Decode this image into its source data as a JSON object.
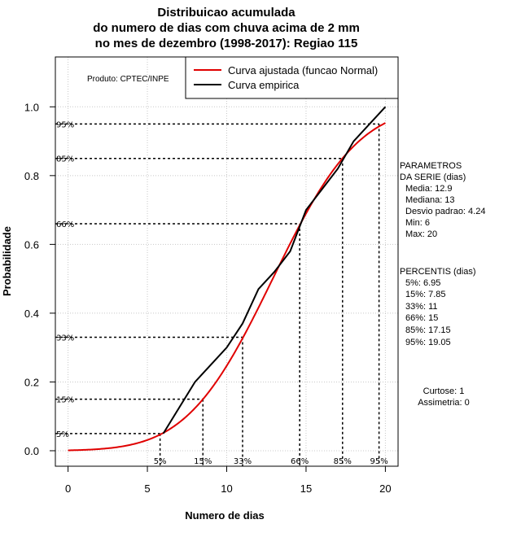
{
  "chart_data": {
    "type": "line",
    "title": [
      "Distribuicao acumulada",
      "do numero de dias com chuva acima de 2 mm",
      "no mes de dezembro (1998-2017): Regiao 115"
    ],
    "xlabel": "Numero de dias",
    "ylabel": "Probabilidade",
    "xlim": [
      -0.8,
      20.8
    ],
    "ylim": [
      -0.045,
      1.145
    ],
    "x_ticks": [
      0,
      5,
      10,
      15,
      20
    ],
    "x_tick_labels": [
      "0",
      "5",
      "10",
      "15",
      "20"
    ],
    "y_ticks": [
      0.0,
      0.2,
      0.4,
      0.6,
      0.8,
      1.0
    ],
    "y_tick_labels": [
      "0.0",
      "0.2",
      "0.4",
      "0.6",
      "0.8",
      "1.0"
    ],
    "grid": true,
    "legend_position": "top-right",
    "credit": "Produto: CPTEC/INPE",
    "series": [
      {
        "name": "Curva ajustada (funcao Normal)",
        "color": "#e00000",
        "kind": "normal_cdf",
        "mean": 12.9,
        "sd": 4.24,
        "x_range": [
          0,
          20
        ]
      },
      {
        "name": "Curva empirica",
        "color": "#000000",
        "x": [
          6,
          8,
          10,
          11,
          12,
          13,
          14,
          15,
          16,
          17,
          18,
          19,
          20
        ],
        "y": [
          0.05,
          0.2,
          0.3,
          0.37,
          0.47,
          0.52,
          0.58,
          0.7,
          0.76,
          0.82,
          0.9,
          0.95,
          1.0
        ]
      }
    ],
    "percentiles": [
      {
        "label": "5%",
        "p": 0.05,
        "x": 6.95
      },
      {
        "label": "15%",
        "p": 0.15,
        "x": 7.85
      },
      {
        "label": "33%",
        "p": 0.33,
        "x": 11
      },
      {
        "label": "66%",
        "p": 0.66,
        "x": 15
      },
      {
        "label": "85%",
        "p": 0.85,
        "x": 17.15
      },
      {
        "label": "95%",
        "p": 0.95,
        "x": 19.05
      }
    ],
    "percentile_lines": [
      {
        "label": "5%",
        "p": 0.05,
        "x": 5.8
      },
      {
        "label": "15%",
        "p": 0.15,
        "x": 8.5
      },
      {
        "label": "33%",
        "p": 0.33,
        "x": 11
      },
      {
        "label": "66%",
        "p": 0.66,
        "x": 14.6
      },
      {
        "label": "85%",
        "p": 0.85,
        "x": 17.3
      },
      {
        "label": "95%",
        "p": 0.95,
        "x": 19.6
      }
    ],
    "side_panel": {
      "params_heading": [
        "PARAMETROS",
        "DA SERIE (dias)"
      ],
      "params": [
        "Media: 12.9",
        "Mediana: 13",
        "Desvio padrao: 4.24",
        "Min: 6",
        "Max: 20"
      ],
      "percentis_heading": "PERCENTIS (dias)",
      "percentis": [
        "5%: 6.95",
        "15%: 7.85",
        "33%: 11",
        "66%: 15",
        "85%: 17.15",
        "95%: 19.05"
      ],
      "curtose": "Curtose: 1",
      "assimetria": "Assimetria: 0"
    }
  }
}
